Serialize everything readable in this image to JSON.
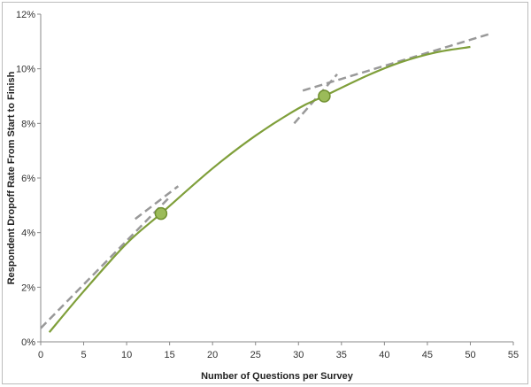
{
  "chart_data": {
    "type": "line",
    "title": "",
    "xlabel": "Number of Questions per Survey",
    "ylabel": "Respondent Dropoff Rate From Start to Finish",
    "xlim": [
      0,
      55
    ],
    "ylim": [
      0,
      12
    ],
    "x_ticks": [
      "0",
      "5",
      "10",
      "15",
      "20",
      "25",
      "30",
      "35",
      "40",
      "45",
      "50",
      "55"
    ],
    "y_ticks": [
      "0%",
      "2%",
      "4%",
      "6%",
      "8%",
      "10%",
      "12%"
    ],
    "grid": false,
    "legend": "none",
    "curve": {
      "x": [
        1,
        5,
        10,
        14,
        20,
        25,
        30,
        33,
        38,
        42,
        46,
        50
      ],
      "y": [
        0.35,
        1.85,
        3.6,
        4.7,
        6.35,
        7.55,
        8.55,
        9.0,
        9.75,
        10.25,
        10.6,
        10.8
      ]
    },
    "markers": {
      "x": [
        14,
        33
      ],
      "y": [
        4.7,
        9.0
      ]
    },
    "dashed_lines": [
      {
        "x": [
          0,
          15
        ],
        "y": [
          0.5,
          5.3
        ]
      },
      {
        "x": [
          11,
          16
        ],
        "y": [
          4.5,
          5.7
        ]
      },
      {
        "x": [
          29.5,
          34.5
        ],
        "y": [
          8.0,
          9.8
        ]
      },
      {
        "x": [
          30.5,
          52.5
        ],
        "y": [
          9.2,
          11.3
        ]
      }
    ],
    "colors": {
      "curve": "#7f9f3a",
      "marker_fill": "#9bbb59",
      "marker_stroke": "#6f8f2f",
      "dashed": "#999999",
      "axis": "#888888"
    }
  }
}
